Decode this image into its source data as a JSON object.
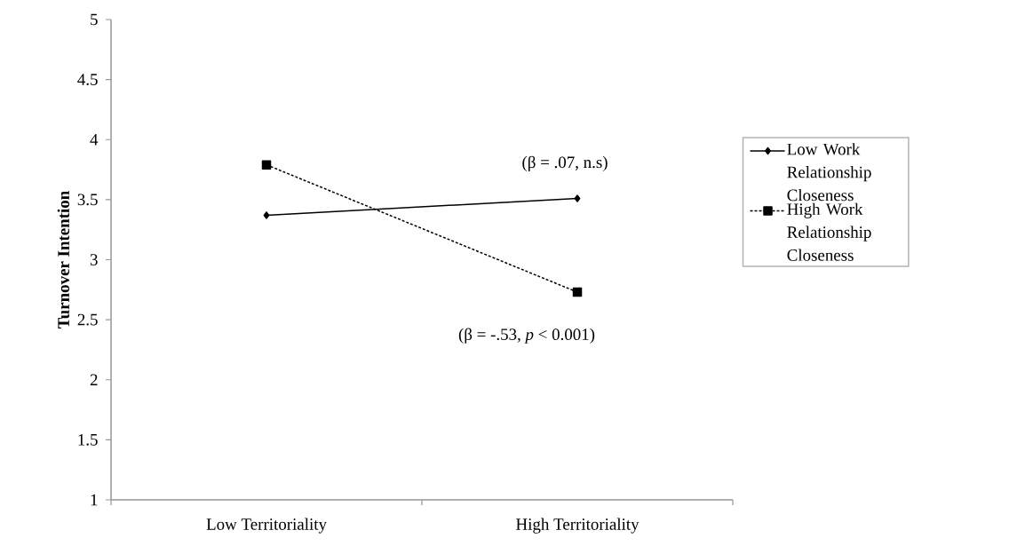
{
  "chart_data": {
    "type": "line",
    "ylabel": "Turnover Intention",
    "categories": [
      "Low Territoriality",
      "High Territoriality"
    ],
    "series": [
      {
        "name": "Low Work Relationship Closeness",
        "color": "#000000",
        "values": [
          3.37,
          3.51
        ],
        "marker": "diamond",
        "line_style": "solid"
      },
      {
        "name": "High Work Relationship Closeness",
        "color": "#000000",
        "values": [
          3.79,
          2.73
        ],
        "marker": "square",
        "line_style": "dashed"
      }
    ],
    "ylim": [
      1,
      5
    ],
    "yticks": [
      1,
      1.5,
      2,
      2.5,
      3,
      3.5,
      4,
      4.5,
      5
    ],
    "annotations": [
      {
        "text": "(β = .07, n.s)",
        "x": "High Territoriality",
        "y": 3.51
      },
      {
        "text": "(β = -.53, *p* < 0.001)",
        "x": "High Territoriality",
        "y": 2.73
      }
    ],
    "grid": false,
    "legend": "right"
  }
}
